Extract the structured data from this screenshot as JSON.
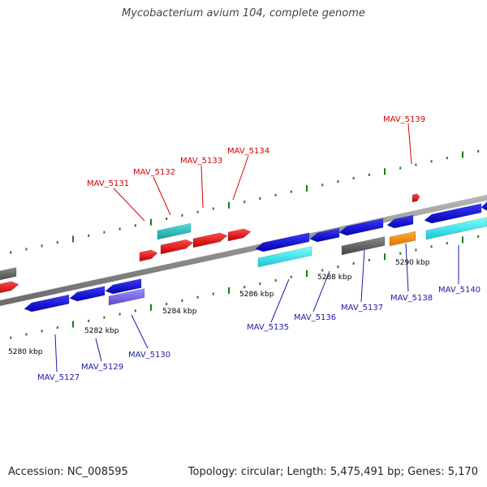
{
  "title": "Mycobacterium avium 104, complete genome",
  "footer": {
    "accession_label": "Accession:",
    "accession": "NC_008595",
    "topology_label": "Topology:",
    "topology": "circular",
    "length_label": "Length:",
    "length": "5,475,491 bp",
    "genes_label": "Genes:",
    "genes": "5,170"
  },
  "colors": {
    "forward_label": "#d40000",
    "reverse_label": "#1a1aa6",
    "backbone": "#8c8c8c",
    "tick": "#1a7a1a"
  },
  "scale_labels": [
    "5280 kbp",
    "5282 kbp",
    "5284 kbp",
    "5286 kbp",
    "5288 kbp",
    "5290 kbp"
  ],
  "forward_gene_labels": [
    "MAV_5131",
    "MAV_5132",
    "MAV_5133",
    "MAV_5134",
    "MAV_5139"
  ],
  "reverse_gene_labels": [
    "MAV_5127",
    "MAV_5129",
    "MAV_5130",
    "MAV_5135",
    "MAV_5136",
    "MAV_5137",
    "MAV_5138",
    "MAV_5140"
  ]
}
